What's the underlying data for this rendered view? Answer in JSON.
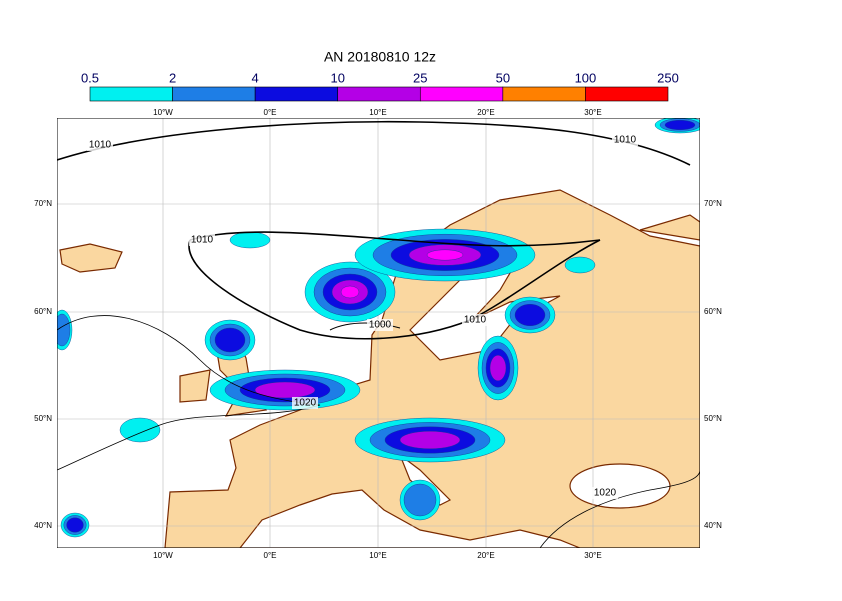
{
  "title": "AN  20180810 12z",
  "colorbar": {
    "labels": [
      "0.5",
      "2",
      "4",
      "10",
      "25",
      "50",
      "100",
      "250"
    ],
    "colors": [
      "#00f0f0",
      "#1e7ee6",
      "#0c0ce0",
      "#b400e6",
      "#ff00ff",
      "#ff8000",
      "#ff0000"
    ]
  },
  "lon_labels": [
    "10°W",
    "0°E",
    "10°E",
    "20°E",
    "30°E"
  ],
  "lat_labels": [
    "70°N",
    "60°N",
    "50°N",
    "40°N"
  ],
  "contour_labels": [
    "1010",
    "1010",
    "1010",
    "1000",
    "1010",
    "1020",
    "1020"
  ]
}
